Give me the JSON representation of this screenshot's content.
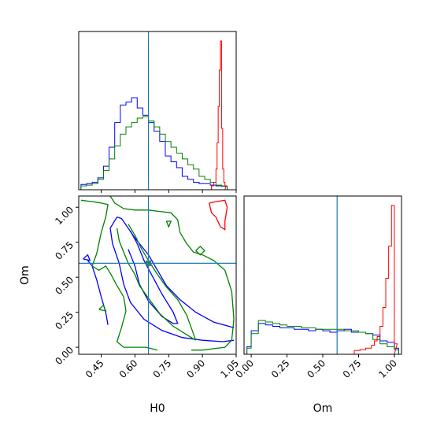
{
  "chart_data": [
    {
      "id": "h0-marginal",
      "type": "histogram",
      "variable": "H0",
      "xlim": [
        0.35,
        1.05
      ],
      "truth": 0.66,
      "x_ticks_hidden": true,
      "bins": [
        0.36,
        0.385,
        0.41,
        0.435,
        0.46,
        0.485,
        0.51,
        0.535,
        0.56,
        0.585,
        0.61,
        0.635,
        0.66,
        0.685,
        0.71,
        0.735,
        0.76,
        0.785,
        0.81,
        0.835,
        0.86,
        0.885,
        0.91,
        0.935,
        0.96,
        0.985,
        1.01
      ],
      "series": [
        {
          "color": "#0000ff",
          "values": [
            0.015,
            0.02,
            0.03,
            0.06,
            0.14,
            0.27,
            0.44,
            0.56,
            0.58,
            0.61,
            0.54,
            0.49,
            0.44,
            0.38,
            0.31,
            0.21,
            0.17,
            0.13,
            0.07,
            0.05,
            0.03,
            0.02,
            0.02,
            0.01,
            0.005,
            0.002
          ]
        },
        {
          "color": "#008000",
          "values": [
            0.005,
            0.01,
            0.02,
            0.05,
            0.11,
            0.19,
            0.28,
            0.36,
            0.41,
            0.44,
            0.47,
            0.48,
            0.45,
            0.41,
            0.36,
            0.31,
            0.27,
            0.23,
            0.19,
            0.15,
            0.12,
            0.07,
            0.05,
            0.03,
            0.01,
            0.005
          ]
        },
        {
          "color": "#ff0000",
          "x": [
            0.94,
            0.95,
            0.96,
            0.965,
            0.97,
            0.975,
            0.98,
            0.985,
            0.99,
            0.995,
            1.0
          ],
          "values": [
            0.005,
            0.03,
            0.12,
            0.3,
            0.55,
            0.8,
            1.0,
            0.4,
            0.12,
            0.03,
            0.005
          ]
        }
      ]
    },
    {
      "id": "h0-om-contours",
      "type": "contour",
      "xlabel": "H0",
      "ylabel": "Om",
      "xlim": [
        0.35,
        1.05
      ],
      "ylim": [
        -0.05,
        1.08
      ],
      "x_ticks": [
        "0.45",
        "0.60",
        "0.75",
        "0.90",
        "1.05"
      ],
      "x_tick_values": [
        0.45,
        0.6,
        0.75,
        0.9,
        1.05
      ],
      "y_ticks": [
        "0.00",
        "0.25",
        "0.50",
        "0.75",
        "1.00"
      ],
      "y_tick_values": [
        0.0,
        0.25,
        0.5,
        0.75,
        1.0
      ],
      "truth": {
        "H0": 0.66,
        "Om": 0.6
      },
      "series": [
        {
          "color": "#0000ff",
          "paths": [
            [
              [
                0.52,
                0.93
              ],
              [
                0.49,
                0.85
              ],
              [
                0.5,
                0.74
              ],
              [
                0.53,
                0.6
              ],
              [
                0.55,
                0.45
              ],
              [
                0.58,
                0.32
              ],
              [
                0.64,
                0.2
              ],
              [
                0.72,
                0.12
              ],
              [
                0.81,
                0.07
              ],
              [
                0.9,
                0.05
              ],
              [
                0.99,
                0.04
              ],
              [
                1.04,
                0.05
              ]
            ],
            [
              [
                0.52,
                0.93
              ],
              [
                0.54,
                0.92
              ],
              [
                0.57,
                0.85
              ],
              [
                0.6,
                0.78
              ],
              [
                0.63,
                0.72
              ],
              [
                0.66,
                0.66
              ],
              [
                0.7,
                0.55
              ],
              [
                0.74,
                0.44
              ],
              [
                0.8,
                0.34
              ],
              [
                0.87,
                0.25
              ],
              [
                0.95,
                0.18
              ],
              [
                1.04,
                0.14
              ]
            ],
            [
              [
                0.57,
                0.7
              ],
              [
                0.6,
                0.58
              ],
              [
                0.62,
                0.45
              ],
              [
                0.66,
                0.33
              ],
              [
                0.72,
                0.22
              ],
              [
                0.77,
                0.17
              ]
            ],
            [
              [
                0.58,
                0.83
              ],
              [
                0.61,
                0.74
              ],
              [
                0.64,
                0.62
              ],
              [
                0.68,
                0.5
              ],
              [
                0.72,
                0.38
              ],
              [
                0.77,
                0.25
              ],
              [
                0.79,
                0.17
              ],
              [
                0.77,
                0.17
              ]
            ],
            [
              [
                0.37,
                0.63
              ],
              [
                0.39,
                0.66
              ],
              [
                0.4,
                0.62
              ],
              [
                0.37,
                0.63
              ]
            ],
            [
              [
                0.39,
                0.62
              ],
              [
                0.41,
                0.58
              ],
              [
                0.43,
                0.48
              ],
              [
                0.45,
                0.36
              ],
              [
                0.47,
                0.25
              ],
              [
                0.48,
                0.16
              ]
            ]
          ]
        },
        {
          "color": "#008000",
          "paths": [
            [
              [
                0.36,
                1.05
              ],
              [
                0.41,
                1.04
              ],
              [
                0.45,
                1.03
              ],
              [
                0.48,
                1.02
              ],
              [
                0.47,
                0.93
              ],
              [
                0.45,
                0.82
              ],
              [
                0.43,
                0.67
              ],
              [
                0.41,
                0.58
              ],
              [
                0.44,
                0.55
              ],
              [
                0.47,
                0.58
              ],
              [
                0.49,
                0.53
              ],
              [
                0.52,
                0.44
              ],
              [
                0.55,
                0.36
              ],
              [
                0.56,
                0.26
              ],
              [
                0.54,
                0.14
              ],
              [
                0.52,
                0.04
              ],
              [
                0.55,
                0.0
              ],
              [
                0.6,
                0.0
              ],
              [
                0.65,
                0.0
              ],
              [
                0.7,
                -0.02
              ]
            ],
            [
              [
                0.49,
                1.08
              ],
              [
                0.51,
                1.03
              ],
              [
                0.55,
                0.99
              ],
              [
                0.6,
                0.98
              ],
              [
                0.66,
                0.98
              ],
              [
                0.71,
                0.97
              ],
              [
                0.76,
                0.96
              ],
              [
                0.79,
                0.91
              ],
              [
                0.8,
                0.82
              ],
              [
                0.83,
                0.74
              ],
              [
                0.86,
                0.68
              ],
              [
                0.9,
                0.66
              ],
              [
                0.95,
                0.62
              ],
              [
                1.0,
                0.55
              ],
              [
                1.03,
                0.4
              ],
              [
                1.04,
                0.2
              ],
              [
                1.03,
                0.05
              ],
              [
                1.0,
                0.0
              ],
              [
                0.95,
                -0.01
              ],
              [
                0.9,
                -0.02
              ],
              [
                0.85,
                -0.02
              ]
            ],
            [
              [
                0.52,
                0.85
              ],
              [
                0.53,
                0.76
              ],
              [
                0.55,
                0.68
              ],
              [
                0.57,
                0.6
              ],
              [
                0.6,
                0.52
              ],
              [
                0.62,
                0.44
              ],
              [
                0.66,
                0.35
              ],
              [
                0.71,
                0.24
              ],
              [
                0.77,
                0.15
              ],
              [
                0.83,
                0.09
              ],
              [
                0.87,
                0.05
              ]
            ],
            [
              [
                0.57,
                0.88
              ],
              [
                0.6,
                0.8
              ],
              [
                0.63,
                0.7
              ],
              [
                0.66,
                0.62
              ],
              [
                0.7,
                0.52
              ],
              [
                0.74,
                0.43
              ],
              [
                0.79,
                0.34
              ],
              [
                0.83,
                0.23
              ],
              [
                0.85,
                0.14
              ],
              [
                0.87,
                0.05
              ]
            ],
            [
              [
                0.74,
                0.9
              ],
              [
                0.75,
                0.86
              ],
              [
                0.76,
                0.9
              ],
              [
                0.74,
                0.9
              ]
            ],
            [
              [
                0.87,
                0.69
              ],
              [
                0.89,
                0.72
              ],
              [
                0.91,
                0.69
              ],
              [
                0.89,
                0.66
              ],
              [
                0.87,
                0.69
              ]
            ],
            [
              [
                0.44,
                0.27
              ],
              [
                0.46,
                0.3
              ],
              [
                0.47,
                0.26
              ],
              [
                0.44,
                0.27
              ]
            ]
          ]
        },
        {
          "color": "#ff0000",
          "paths": [
            [
              [
                0.93,
                1.03
              ],
              [
                0.96,
                1.04
              ],
              [
                1.0,
                1.05
              ],
              [
                1.01,
                1.0
              ],
              [
                1.0,
                0.9
              ],
              [
                1.0,
                0.84
              ],
              [
                0.98,
                0.86
              ],
              [
                0.96,
                0.93
              ],
              [
                0.94,
                0.96
              ],
              [
                0.93,
                1.03
              ]
            ]
          ]
        }
      ]
    },
    {
      "id": "om-marginal",
      "type": "histogram",
      "variable": "Om",
      "xlabel": "Om",
      "xlim": [
        -0.05,
        1.05
      ],
      "truth": 0.6,
      "x_ticks": [
        "0.00",
        "0.25",
        "0.50",
        "0.75",
        "1.00"
      ],
      "x_tick_values": [
        0.0,
        0.25,
        0.5,
        0.75,
        1.0
      ],
      "bins": [
        -0.03,
        0.0,
        0.05,
        0.1,
        0.15,
        0.2,
        0.25,
        0.3,
        0.35,
        0.4,
        0.45,
        0.5,
        0.55,
        0.6,
        0.65,
        0.7,
        0.75,
        0.8,
        0.85,
        0.9,
        0.95,
        1.0,
        1.03
      ],
      "series": [
        {
          "color": "#0000ff",
          "values": [
            0.03,
            0.14,
            0.19,
            0.18,
            0.17,
            0.16,
            0.16,
            0.15,
            0.15,
            0.14,
            0.15,
            0.14,
            0.13,
            0.14,
            0.15,
            0.13,
            0.13,
            0.12,
            0.11,
            0.07,
            0.06,
            0.02
          ]
        },
        {
          "color": "#008000",
          "values": [
            0.02,
            0.12,
            0.21,
            0.2,
            0.19,
            0.18,
            0.17,
            0.17,
            0.16,
            0.16,
            0.15,
            0.15,
            0.15,
            0.15,
            0.14,
            0.14,
            0.13,
            0.12,
            0.08,
            0.05,
            0.03,
            0.01
          ]
        },
        {
          "color": "#ff0000",
          "x": [
            0.72,
            0.76,
            0.8,
            0.84,
            0.86,
            0.88,
            0.9,
            0.92,
            0.94,
            0.96,
            0.98,
            1.0
          ],
          "values": [
            0.005,
            0.01,
            0.02,
            0.04,
            0.07,
            0.1,
            0.17,
            0.3,
            0.5,
            0.72,
            1.0,
            0.05
          ]
        }
      ]
    }
  ]
}
